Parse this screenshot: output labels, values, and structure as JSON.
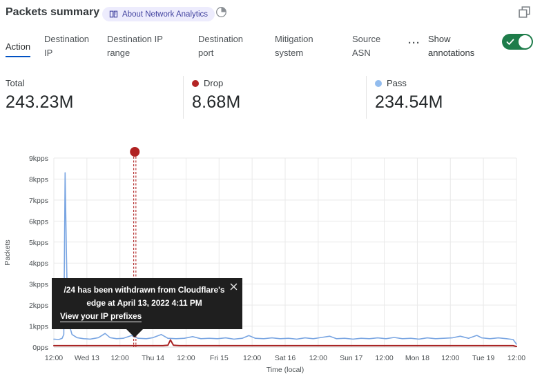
{
  "header": {
    "title": "Packets summary",
    "about_badge": "About Network Analytics"
  },
  "tabs": {
    "items": [
      {
        "label": "Action",
        "active": true
      },
      {
        "label": "Destination IP",
        "active": false
      },
      {
        "label": "Destination IP range",
        "active": false
      },
      {
        "label": "Destination port",
        "active": false
      },
      {
        "label": "Mitigation system",
        "active": false
      },
      {
        "label": "Source ASN",
        "active": false
      }
    ],
    "more": "···",
    "annotations_label": "Show annotations",
    "annotations_toggle_on": true
  },
  "stats": [
    {
      "label": "Total",
      "value": "243.23M",
      "color": null
    },
    {
      "label": "Drop",
      "value": "8.68M",
      "color": "#b32424"
    },
    {
      "label": "Pass",
      "value": "234.54M",
      "color": "#92bcee"
    }
  ],
  "tooltip": {
    "message": "/24 has been withdrawn from Cloudflare's edge at April 13, 2022 4:11 PM",
    "link": "View your IP prefixes"
  },
  "colors": {
    "accent_blue": "#0051c3",
    "toggle_green": "#1e7c4a",
    "badge_bg": "#edecfd",
    "badge_text": "#40419e",
    "pass_blue": "#79a5e2",
    "drop_red": "#a82222",
    "annotation_red": "#b02121",
    "tooltip_bg": "#1f1f1f",
    "gridline": "#e9e9e9"
  },
  "chart_data": {
    "type": "line",
    "title": "Packets summary",
    "xlabel": "Time (local)",
    "ylabel": "Packets",
    "x_ticks": [
      "12:00",
      "Wed 13",
      "12:00",
      "Thu 14",
      "12:00",
      "Fri 15",
      "12:00",
      "Sat 16",
      "12:00",
      "Sun 17",
      "12:00",
      "Mon 18",
      "12:00",
      "Tue 19",
      "12:00"
    ],
    "y_ticks": [
      "0pps",
      "1kpps",
      "2kpps",
      "3kpps",
      "4kpps",
      "5kpps",
      "6kpps",
      "7kpps",
      "8kpps",
      "9kpps"
    ],
    "ylim": [
      0,
      9
    ],
    "y_unit": "kpps",
    "x_unit": "half-day tick index (Apr 12 12:00 → Apr 19 12:00)",
    "grid": true,
    "legend_position": "none",
    "series": [
      {
        "name": "Pass",
        "color": "#79a5e2",
        "points": [
          [
            0,
            0.38
          ],
          [
            0.15,
            0.36
          ],
          [
            0.25,
            0.42
          ],
          [
            0.3,
            0.6
          ],
          [
            0.34,
            8.3
          ],
          [
            0.38,
            4.5
          ],
          [
            0.42,
            1.3
          ],
          [
            0.55,
            0.6
          ],
          [
            0.7,
            0.45
          ],
          [
            0.9,
            0.4
          ],
          [
            1.1,
            0.38
          ],
          [
            1.35,
            0.45
          ],
          [
            1.55,
            0.65
          ],
          [
            1.7,
            0.45
          ],
          [
            1.9,
            0.4
          ],
          [
            2.1,
            0.42
          ],
          [
            2.35,
            0.55
          ],
          [
            2.55,
            0.42
          ],
          [
            2.8,
            0.4
          ],
          [
            3.0,
            0.45
          ],
          [
            3.25,
            0.6
          ],
          [
            3.45,
            0.42
          ],
          [
            3.7,
            0.4
          ],
          [
            3.95,
            0.42
          ],
          [
            4.2,
            0.5
          ],
          [
            4.45,
            0.4
          ],
          [
            4.7,
            0.42
          ],
          [
            4.95,
            0.4
          ],
          [
            5.2,
            0.44
          ],
          [
            5.45,
            0.38
          ],
          [
            5.7,
            0.42
          ],
          [
            5.9,
            0.55
          ],
          [
            6.1,
            0.42
          ],
          [
            6.35,
            0.4
          ],
          [
            6.6,
            0.44
          ],
          [
            6.85,
            0.4
          ],
          [
            7.1,
            0.42
          ],
          [
            7.35,
            0.38
          ],
          [
            7.6,
            0.44
          ],
          [
            7.85,
            0.4
          ],
          [
            8.1,
            0.46
          ],
          [
            8.35,
            0.52
          ],
          [
            8.55,
            0.4
          ],
          [
            8.8,
            0.42
          ],
          [
            9.05,
            0.38
          ],
          [
            9.3,
            0.42
          ],
          [
            9.55,
            0.4
          ],
          [
            9.8,
            0.44
          ],
          [
            10.05,
            0.4
          ],
          [
            10.3,
            0.46
          ],
          [
            10.55,
            0.4
          ],
          [
            10.8,
            0.42
          ],
          [
            11.05,
            0.38
          ],
          [
            11.3,
            0.44
          ],
          [
            11.55,
            0.4
          ],
          [
            11.8,
            0.42
          ],
          [
            12.05,
            0.44
          ],
          [
            12.3,
            0.52
          ],
          [
            12.55,
            0.42
          ],
          [
            12.8,
            0.56
          ],
          [
            12.95,
            0.44
          ],
          [
            13.2,
            0.4
          ],
          [
            13.45,
            0.44
          ],
          [
            13.7,
            0.4
          ],
          [
            13.9,
            0.36
          ],
          [
            14,
            0.14
          ]
        ]
      },
      {
        "name": "Drop",
        "color": "#a82222",
        "points": [
          [
            0,
            0.07
          ],
          [
            3.3,
            0.07
          ],
          [
            3.45,
            0.09
          ],
          [
            3.53,
            0.34
          ],
          [
            3.62,
            0.09
          ],
          [
            3.8,
            0.07
          ],
          [
            13.9,
            0.07
          ],
          [
            14,
            0.03
          ]
        ]
      }
    ],
    "annotation": {
      "x": 2.45,
      "color": "#b02121",
      "label": "/24 has been withdrawn from Cloudflare's edge at April 13, 2022 4:11 PM"
    }
  }
}
